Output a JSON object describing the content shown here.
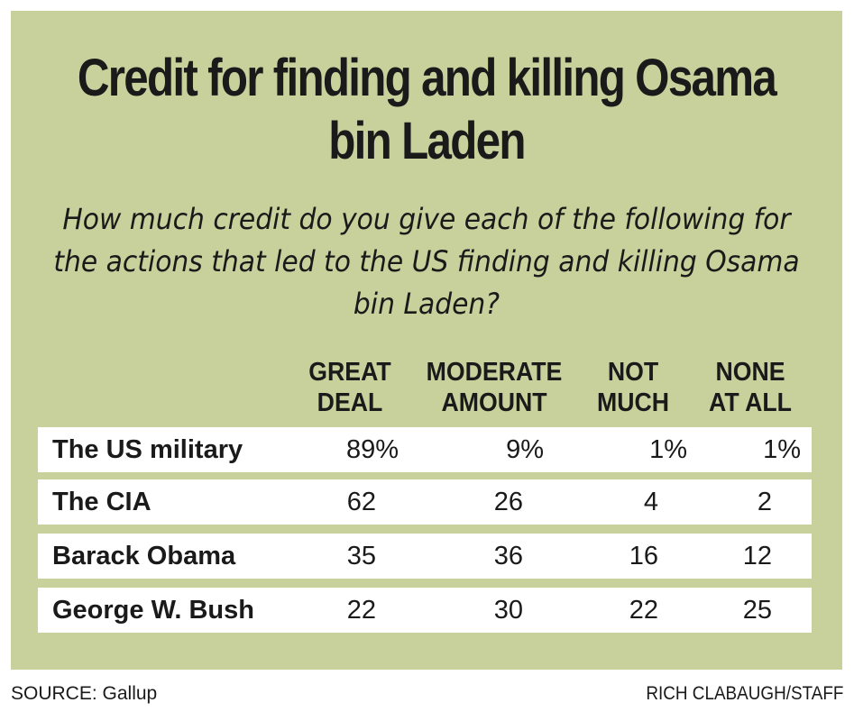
{
  "chart_data": {
    "type": "table",
    "title": "Credit for finding and killing Osama bin Laden",
    "subtitle": "How much credit do you give each of the following for the actions that led to the US finding and killing Osama bin Laden?",
    "columns": [
      {
        "line1": "GREAT",
        "line2": "DEAL"
      },
      {
        "line1": "MODERATE",
        "line2": "AMOUNT"
      },
      {
        "line1": "NOT",
        "line2": "MUCH"
      },
      {
        "line1": "NONE",
        "line2": "AT ALL"
      }
    ],
    "rows": [
      {
        "label": "The US military",
        "values": [
          "89%",
          "9%",
          "1%",
          "1%"
        ]
      },
      {
        "label": "The CIA",
        "values": [
          "62",
          "26",
          "4",
          "2"
        ]
      },
      {
        "label": "Barack Obama",
        "values": [
          "35",
          "36",
          "16",
          "12"
        ]
      },
      {
        "label": "George W. Bush",
        "values": [
          "22",
          "30",
          "22",
          "25"
        ]
      }
    ]
  },
  "footer": {
    "source": "SOURCE: Gallup",
    "credit": "RICH CLABAUGH/STAFF"
  },
  "colors": {
    "panel_background": "#c8d09c",
    "row_background": "#ffffff",
    "text": "#1a1a1a"
  }
}
